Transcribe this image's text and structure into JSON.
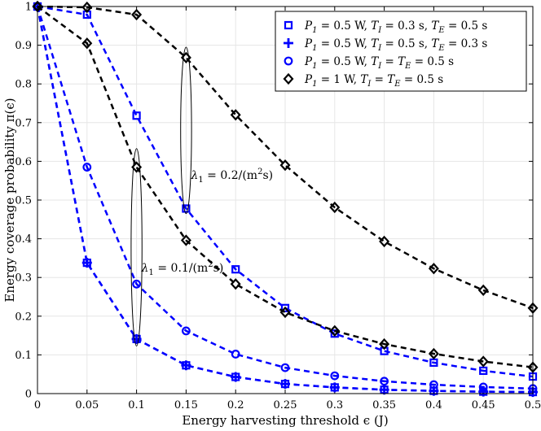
{
  "chart_data": {
    "type": "line",
    "xlabel": "Energy harvesting threshold ϵ (J)",
    "ylabel": "Energy coverage probability π(ϵ)",
    "xlim": [
      0,
      0.5
    ],
    "ylim": [
      0,
      1
    ],
    "x_ticks": [
      "0",
      "0.05",
      "0.1",
      "0.15",
      "0.2",
      "0.25",
      "0.3",
      "0.35",
      "0.4",
      "0.45",
      "0.5"
    ],
    "y_ticks": [
      "0",
      "0.1",
      "0.2",
      "0.3",
      "0.4",
      "0.5",
      "0.6",
      "0.7",
      "0.8",
      "0.9",
      "1"
    ],
    "grid": true,
    "legend_position": "top-right",
    "x": [
      0,
      0.05,
      0.1,
      0.15,
      0.2,
      0.25,
      0.3,
      0.35,
      0.4,
      0.45,
      0.5
    ],
    "series": [
      {
        "name": "P1 = 0.5 W, TI = 0.3 s, TE = 0.5 s",
        "marker": "square",
        "color": "#0000ff",
        "values": [
          1.0,
          0.338,
          0.141,
          0.073,
          0.043,
          0.025,
          0.016,
          0.01,
          0.007,
          0.005,
          0.004
        ]
      },
      {
        "name": "P1 = 0.5 W, TI = 0.5 s, TE = 0.3 s",
        "marker": "plus",
        "color": "#0000ff",
        "values": [
          1.0,
          0.338,
          0.141,
          0.073,
          0.043,
          0.025,
          0.016,
          0.01,
          0.007,
          0.005,
          0.004
        ]
      },
      {
        "name": "P1 = 0.5 W, TI = TE = 0.5 s",
        "marker": "circle",
        "color": "#0000ff",
        "values": [
          1.0,
          0.585,
          0.283,
          0.162,
          0.102,
          0.067,
          0.046,
          0.032,
          0.023,
          0.017,
          0.013
        ]
      },
      {
        "name": "P1 = 0.5 W, TI = 0.3 s, TE = 0.5 s (λ1 = 0.2)",
        "marker": "square",
        "color": "#0000ff",
        "values": [
          1.0,
          0.979,
          0.718,
          0.478,
          0.321,
          0.221,
          0.155,
          0.11,
          0.08,
          0.059,
          0.044
        ]
      },
      {
        "name": "P1 = 1 W, TI = TE = 0.5 s (λ1 = 0.1)",
        "marker": "diamond",
        "color": "#000000",
        "values": [
          1.0,
          0.905,
          0.585,
          0.396,
          0.283,
          0.21,
          0.162,
          0.128,
          0.103,
          0.083,
          0.068
        ]
      },
      {
        "name": "P1 = 1 W, TI = TE = 0.5 s (λ1 = 0.2)",
        "marker": "diamond",
        "color": "#000000",
        "values": [
          1.0,
          0.998,
          0.979,
          0.868,
          0.72,
          0.59,
          0.481,
          0.393,
          0.323,
          0.267,
          0.221
        ]
      }
    ],
    "legend": [
      {
        "marker": "square",
        "color": "#0000ff",
        "pre": "P",
        "sub": "1",
        "post": " = 0.5 W, ",
        "t1": "T",
        "t1sub": "I",
        "t1post": " = 0.3 s, ",
        "t2": "T",
        "t2sub": "E",
        "t2post": " = 0.5 s"
      },
      {
        "marker": "plus",
        "color": "#0000ff",
        "pre": "P",
        "sub": "1",
        "post": " = 0.5 W, ",
        "t1": "T",
        "t1sub": "I",
        "t1post": " = 0.5 s, ",
        "t2": "T",
        "t2sub": "E",
        "t2post": " = 0.3 s"
      },
      {
        "marker": "circle",
        "color": "#0000ff",
        "pre": "P",
        "sub": "1",
        "post": " = 0.5 W, ",
        "t1": "T",
        "t1sub": "I",
        "t1post": " = ",
        "t2": "T",
        "t2sub": "E",
        "t2post": " = 0.5 s"
      },
      {
        "marker": "diamond",
        "color": "#000000",
        "pre": "P",
        "sub": "1",
        "post": " = 1 W, ",
        "t1": "T",
        "t1sub": "I",
        "t1post": " = ",
        "t2": "T",
        "t2sub": "E",
        "t2post": " = 0.5 s"
      }
    ],
    "annotations": [
      {
        "label": "λ1 = 0.2/(m²s)",
        "text_main": "λ",
        "text_sub": "1",
        "text_rest": " = 0.2/(m",
        "text_sup": "2",
        "text_end": "s)",
        "at_x": 0.155,
        "at_y": 0.555,
        "ellipse": {
          "cx": 0.15,
          "cy": 0.68,
          "rx": 0.0055,
          "ry": 0.215
        }
      },
      {
        "label": "λ1 = 0.1/(m²s)",
        "text_main": "λ",
        "text_sub": "1",
        "text_rest": " = 0.1/(m",
        "text_sup": "2",
        "text_end": "s)",
        "at_x": 0.105,
        "at_y": 0.315,
        "ellipse": {
          "cx": 0.1,
          "cy": 0.378,
          "rx": 0.0055,
          "ry": 0.255
        }
      }
    ]
  }
}
